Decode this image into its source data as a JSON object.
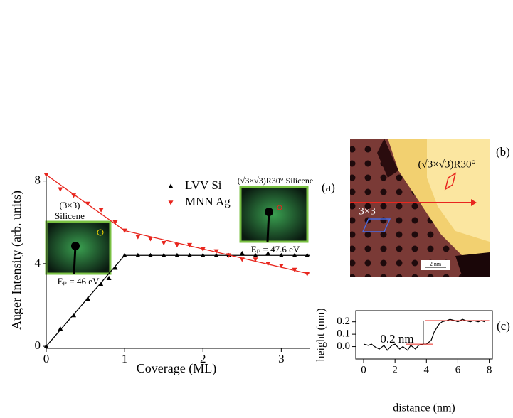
{
  "chart_data": [
    {
      "type": "scatter",
      "xlabel": "Coverage (ML)",
      "ylabel": "Auger Intensity (arb. units)",
      "xlim": [
        0,
        3.36
      ],
      "ylim": [
        -0.1,
        8.4
      ],
      "xticks": [
        0,
        1,
        2,
        3
      ],
      "yticks": [
        0,
        4,
        8
      ],
      "annotations": [
        "(a)",
        "(3×3)",
        "Silicene",
        "Eₚ = 46 eV",
        "(√3×√3)R30° Silicene",
        "Eₚ = 47.6 eV"
      ],
      "series": [
        {
          "name": "LVV Si",
          "color": "#000000",
          "marker": "up",
          "x": [
            0,
            0.18,
            0.35,
            0.53,
            0.7,
            0.8,
            0.88,
            1.0,
            1.17,
            1.33,
            1.5,
            1.67,
            1.83,
            2.0,
            2.17,
            2.33,
            2.5,
            2.67,
            2.83,
            3.0,
            3.17,
            3.33
          ],
          "values": [
            0.0,
            0.85,
            1.5,
            2.3,
            3.0,
            3.3,
            3.8,
            4.4,
            4.4,
            4.4,
            4.4,
            4.4,
            4.4,
            4.4,
            4.4,
            4.4,
            4.5,
            4.4,
            4.5,
            4.4,
            4.4,
            4.4
          ]
        },
        {
          "name": "MNN Ag",
          "color": "#e8261e",
          "marker": "down",
          "x": [
            0,
            0.18,
            0.35,
            0.53,
            0.7,
            0.88,
            1.0,
            1.17,
            1.33,
            1.5,
            1.67,
            1.83,
            2.0,
            2.17,
            2.33,
            2.5,
            2.67,
            2.83,
            3.0,
            3.17,
            3.33
          ],
          "values": [
            8.3,
            7.6,
            7.3,
            6.9,
            6.6,
            6.0,
            5.6,
            5.3,
            5.2,
            5.0,
            4.9,
            4.9,
            4.7,
            4.6,
            4.4,
            4.2,
            4.2,
            4.0,
            3.9,
            3.7,
            3.5
          ]
        },
        {
          "color": "#000000",
          "x": [
            0,
            1.0,
            3.36
          ],
          "values": [
            0,
            4.4,
            4.4
          ]
        },
        {
          "color": "#e8261e",
          "x": [
            0,
            1.0,
            3.36
          ],
          "values": [
            8.3,
            5.6,
            3.5
          ]
        }
      ]
    },
    {
      "type": "line",
      "xlabel": "distance (nm)",
      "ylabel": "height (nm)",
      "xlim": [
        -0.5,
        8.2
      ],
      "ylim": [
        -0.1,
        0.29
      ],
      "xticks": [
        0,
        2,
        4,
        6,
        8
      ],
      "yticks": [
        {
          "value": 0,
          "label": "0.0"
        },
        0.1,
        0.2
      ],
      "annotations": [
        "(c)",
        "0.2 nm"
      ],
      "series": [
        {
          "color": "#000000",
          "x": [
            0,
            0.3,
            0.5,
            0.7,
            1.0,
            1.3,
            1.5,
            1.8,
            2.0,
            2.3,
            2.5,
            2.8,
            3.0,
            3.3,
            3.5,
            3.8,
            4.0,
            4.3,
            4.5,
            4.8,
            5.0,
            5.3,
            5.5,
            5.8,
            6.0,
            6.3,
            6.5,
            6.8,
            7.0,
            7.3,
            7.5,
            7.7
          ],
          "values": [
            0.02,
            0.01,
            0.02,
            0.0,
            -0.02,
            0.01,
            -0.03,
            0.01,
            0.02,
            -0.02,
            0.0,
            -0.03,
            0.01,
            -0.02,
            0.01,
            0.02,
            0.02,
            0.05,
            0.12,
            0.18,
            0.2,
            0.21,
            0.22,
            0.21,
            0.2,
            0.22,
            0.21,
            0.2,
            0.21,
            0.2,
            0.21,
            0.2
          ]
        },
        {
          "color": "#e8261e",
          "x": [
            2.7,
            4.4
          ],
          "values": [
            0.02,
            0.02
          ]
        },
        {
          "color": "#e8261e",
          "x": [
            3.9,
            8.0
          ],
          "values": [
            0.21,
            0.21
          ]
        }
      ]
    },
    {
      "type": "image",
      "annotations": [
        "(b)",
        "(√3×√3)R30°",
        "3×3",
        "2 nm"
      ]
    }
  ]
}
